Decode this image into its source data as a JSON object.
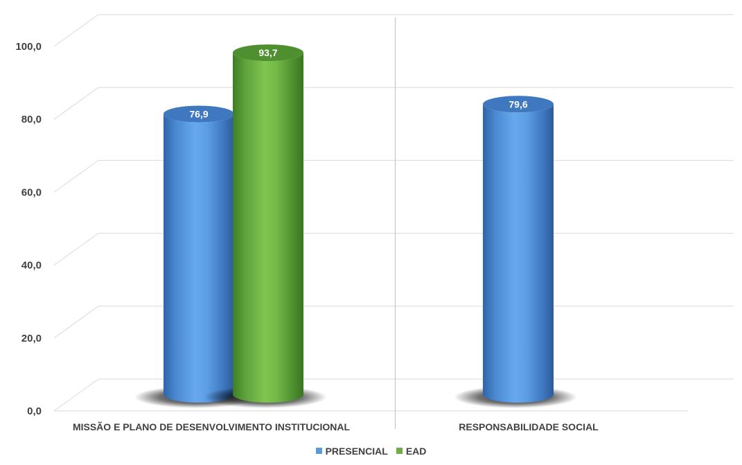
{
  "chart_data": {
    "type": "bar",
    "style": "3d-cylinder",
    "categories": [
      "MISSÃO E PLANO DE DESENVOLVIMENTO INSTITUCIONAL",
      "RESPONSABILIDADE SOCIAL"
    ],
    "series": [
      {
        "name": "PRESENCIAL",
        "color": "#5b9bd5",
        "values": [
          76.9,
          79.6
        ],
        "labels": [
          "76,9",
          "79,6"
        ]
      },
      {
        "name": "EAD",
        "color": "#70ad47",
        "values": [
          93.7,
          null
        ],
        "labels": [
          "93,7",
          ""
        ]
      }
    ],
    "yticks": [
      "0,0",
      "20,0",
      "40,0",
      "60,0",
      "80,0",
      "100,0"
    ],
    "ylim": [
      0,
      100
    ],
    "grid": true,
    "legend_position": "bottom"
  }
}
